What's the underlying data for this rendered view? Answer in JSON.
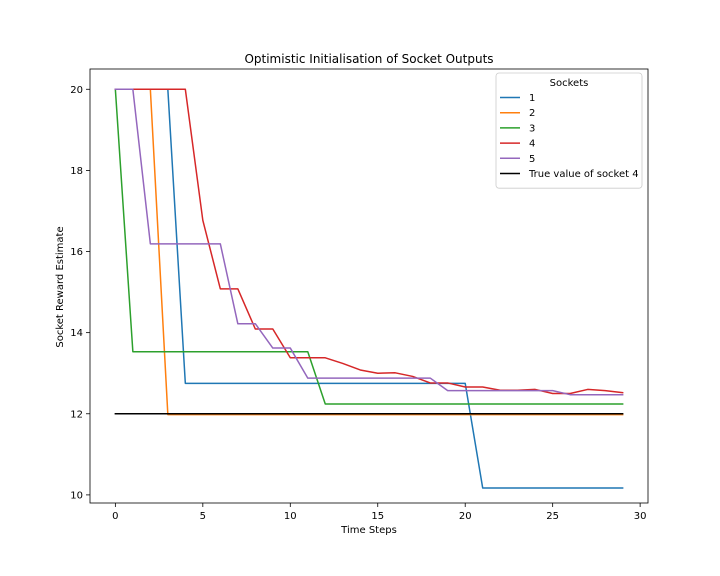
{
  "chart_data": {
    "type": "line",
    "title": "Optimistic Initialisation of Socket Outputs",
    "xlabel": "Time Steps",
    "ylabel": "Socket Reward Estimate",
    "xlim": [
      -1.45,
      30.45
    ],
    "ylim": [
      9.8,
      20.5
    ],
    "xticks": [
      0,
      5,
      10,
      15,
      20,
      25,
      30
    ],
    "yticks": [
      10,
      12,
      14,
      16,
      18,
      20
    ],
    "x": [
      0,
      1,
      2,
      3,
      4,
      5,
      6,
      7,
      8,
      9,
      10,
      11,
      12,
      13,
      14,
      15,
      16,
      17,
      18,
      19,
      20,
      21,
      22,
      23,
      24,
      25,
      26,
      27,
      28,
      29
    ],
    "legend": {
      "title": "Sockets",
      "placement": "upper right"
    },
    "grid": false,
    "series": [
      {
        "name": "1",
        "color": "#1f77b4",
        "values": [
          20,
          20,
          20,
          20,
          12.75,
          12.75,
          12.75,
          12.75,
          12.75,
          12.75,
          12.75,
          12.75,
          12.75,
          12.75,
          12.75,
          12.75,
          12.75,
          12.75,
          12.75,
          12.75,
          12.75,
          10.17,
          10.17,
          10.17,
          10.17,
          10.17,
          10.17,
          10.17,
          10.17,
          10.17
        ]
      },
      {
        "name": "2",
        "color": "#ff7f0e",
        "values": [
          20,
          20,
          20,
          11.98,
          11.98,
          11.98,
          11.98,
          11.98,
          11.98,
          11.98,
          11.98,
          11.98,
          11.98,
          11.98,
          11.98,
          11.98,
          11.98,
          11.98,
          11.98,
          11.98,
          11.98,
          11.98,
          11.98,
          11.98,
          11.98,
          11.98,
          11.98,
          11.98,
          11.98,
          11.98
        ]
      },
      {
        "name": "3",
        "color": "#2ca02c",
        "values": [
          20,
          13.53,
          13.53,
          13.53,
          13.53,
          13.53,
          13.53,
          13.53,
          13.53,
          13.53,
          13.53,
          13.53,
          12.24,
          12.24,
          12.24,
          12.24,
          12.24,
          12.24,
          12.24,
          12.24,
          12.24,
          12.24,
          12.24,
          12.24,
          12.24,
          12.24,
          12.24,
          12.24,
          12.24,
          12.24
        ]
      },
      {
        "name": "4",
        "color": "#d62728",
        "values": [
          20,
          20,
          20,
          20,
          20,
          16.77,
          15.08,
          15.08,
          14.09,
          14.09,
          13.38,
          13.38,
          13.38,
          13.24,
          13.08,
          13.0,
          13.01,
          12.92,
          12.76,
          12.76,
          12.66,
          12.66,
          12.58,
          12.58,
          12.6,
          12.5,
          12.5,
          12.6,
          12.57,
          12.52
        ]
      },
      {
        "name": "5",
        "color": "#9467bd",
        "values": [
          20,
          20,
          16.19,
          16.19,
          16.19,
          16.19,
          16.19,
          14.22,
          14.22,
          13.62,
          13.62,
          12.88,
          12.88,
          12.88,
          12.88,
          12.88,
          12.88,
          12.88,
          12.88,
          12.57,
          12.57,
          12.57,
          12.57,
          12.57,
          12.57,
          12.57,
          12.47,
          12.47,
          12.47,
          12.47
        ]
      },
      {
        "name": "True value of socket 4",
        "color": "#000000",
        "values": [
          12,
          12,
          12,
          12,
          12,
          12,
          12,
          12,
          12,
          12,
          12,
          12,
          12,
          12,
          12,
          12,
          12,
          12,
          12,
          12,
          12,
          12,
          12,
          12,
          12,
          12,
          12,
          12,
          12,
          12
        ]
      }
    ]
  }
}
